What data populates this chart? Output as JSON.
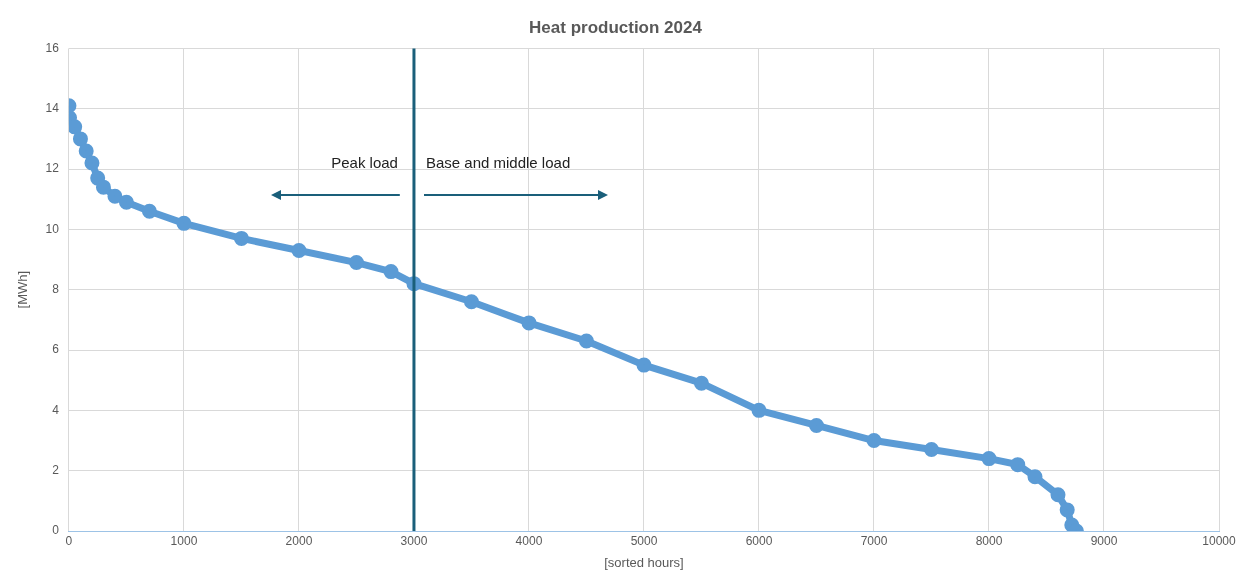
{
  "chart_data": {
    "type": "line",
    "title": "Heat production 2024",
    "xlabel": "[sorted hours]",
    "ylabel": "[MWh]",
    "xlim": [
      0,
      10000
    ],
    "xticks": [
      0,
      1000,
      2000,
      3000,
      4000,
      5000,
      6000,
      7000,
      8000,
      9000,
      10000
    ],
    "ylim": [
      0,
      16
    ],
    "yticks": [
      0,
      2,
      4,
      6,
      8,
      10,
      12,
      14,
      16
    ],
    "grid": true,
    "legend": false,
    "marker": "circle",
    "series": [
      {
        "color": "#5b9bd5",
        "x": [
          0,
          5,
          50,
          100,
          150,
          200,
          250,
          300,
          400,
          500,
          700,
          1000,
          1500,
          2000,
          2500,
          2800,
          3000,
          3500,
          4000,
          4500,
          5000,
          5500,
          6000,
          6500,
          7000,
          7500,
          8000,
          8250,
          8400,
          8600,
          8680,
          8720,
          8760
        ],
        "values": [
          14.1,
          13.7,
          13.4,
          13.0,
          12.6,
          12.2,
          11.7,
          11.4,
          11.1,
          10.9,
          10.6,
          10.2,
          9.7,
          9.3,
          8.9,
          8.6,
          8.2,
          7.6,
          6.9,
          6.3,
          5.5,
          4.9,
          4.0,
          3.5,
          3.0,
          2.7,
          2.4,
          2.2,
          1.8,
          1.2,
          0.7,
          0.2,
          0.0
        ]
      }
    ],
    "ref_lines": [
      {
        "axis": "x",
        "value": 3000,
        "color": "#1a5f7a"
      }
    ],
    "annotations": [
      "Peak load",
      "Base and middle load"
    ]
  }
}
